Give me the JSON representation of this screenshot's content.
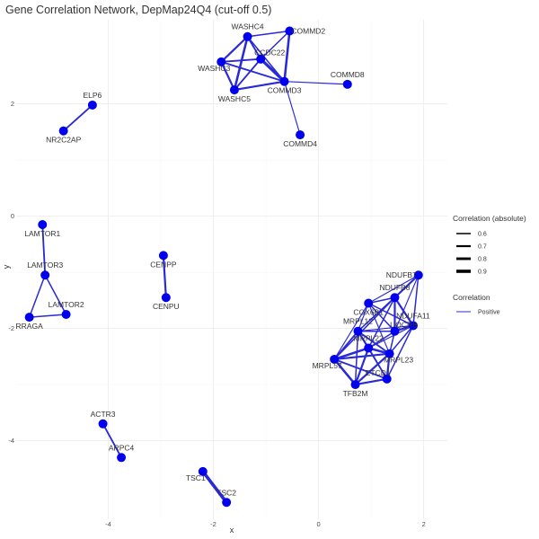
{
  "chart_data": {
    "type": "network",
    "title": "Gene Correlation Network, DepMap24Q4 (cut-off 0.5)",
    "xlabel": "x",
    "ylabel": "y",
    "xlim": [
      -5.75,
      2.45
    ],
    "ylim": [
      -5.4,
      3.5
    ],
    "x_ticks": [
      -4,
      -2,
      0,
      2
    ],
    "y_ticks": [
      -4,
      -2,
      0,
      2
    ],
    "grid": true,
    "legend_position": "right",
    "node_color": "#0000ee",
    "edge_color": "#2a2ad6",
    "legend": {
      "width_title": "Correlation (absolute)",
      "width_entries": [
        {
          "label": "0.6",
          "value": 0.6
        },
        {
          "label": "0.7",
          "value": 0.7
        },
        {
          "label": "0.8",
          "value": 0.8
        },
        {
          "label": "0.9",
          "value": 0.9
        }
      ],
      "color_title": "Correlation",
      "color_entries": [
        {
          "label": "Positive",
          "color": "#2a2ad6"
        }
      ]
    },
    "nodes": [
      {
        "id": "WASHC4",
        "x": -1.35,
        "y": 3.2
      },
      {
        "id": "COMMD2",
        "x": -0.55,
        "y": 3.3
      },
      {
        "id": "CCDC22",
        "x": -1.1,
        "y": 2.8
      },
      {
        "id": "WASHC3",
        "x": -1.85,
        "y": 2.75
      },
      {
        "id": "COMMD3",
        "x": -0.65,
        "y": 2.4
      },
      {
        "id": "WASHC5",
        "x": -1.6,
        "y": 2.25
      },
      {
        "id": "COMMD8",
        "x": 0.55,
        "y": 2.35
      },
      {
        "id": "COMMD4",
        "x": -0.35,
        "y": 1.45
      },
      {
        "id": "ELP6",
        "x": -4.3,
        "y": 1.98
      },
      {
        "id": "NR2C2AP",
        "x": -4.85,
        "y": 1.52
      },
      {
        "id": "LAMTOR1",
        "x": -5.25,
        "y": -0.15
      },
      {
        "id": "LAMTOR3",
        "x": -5.2,
        "y": -1.05
      },
      {
        "id": "LAMTOR2",
        "x": -4.8,
        "y": -1.75
      },
      {
        "id": "RRAGA",
        "x": -5.5,
        "y": -1.8
      },
      {
        "id": "CENPP",
        "x": -2.95,
        "y": -0.7
      },
      {
        "id": "CENPU",
        "x": -2.9,
        "y": -1.45
      },
      {
        "id": "NDUFB7",
        "x": 1.9,
        "y": -1.05
      },
      {
        "id": "NDUFB8",
        "x": 1.45,
        "y": -1.45
      },
      {
        "id": "COX6B1",
        "x": 0.95,
        "y": -1.55
      },
      {
        "id": "NDUFA11",
        "x": 1.8,
        "y": -1.95
      },
      {
        "id": "MRPL12",
        "x": 0.75,
        "y": -2.05
      },
      {
        "id": "UQCRB",
        "x": 1.45,
        "y": -2.05
      },
      {
        "id": "MRPL22",
        "x": 0.95,
        "y": -2.35
      },
      {
        "id": "MRPL23",
        "x": 1.35,
        "y": -2.45
      },
      {
        "id": "MRPL57",
        "x": 0.3,
        "y": -2.55
      },
      {
        "id": "ETCD1",
        "x": 1.3,
        "y": -2.9
      },
      {
        "id": "TFB2M",
        "x": 0.7,
        "y": -3.0
      },
      {
        "id": "ACTR3",
        "x": -4.1,
        "y": -3.7
      },
      {
        "id": "ARPC4",
        "x": -3.75,
        "y": -4.3
      },
      {
        "id": "TSC1",
        "x": -2.2,
        "y": -4.55
      },
      {
        "id": "TSC2",
        "x": -1.75,
        "y": -5.1
      }
    ],
    "edges": [
      {
        "source": "WASHC4",
        "target": "COMMD2",
        "correlation": 0.6
      },
      {
        "source": "WASHC4",
        "target": "CCDC22",
        "correlation": 0.65
      },
      {
        "source": "WASHC4",
        "target": "WASHC3",
        "correlation": 0.7
      },
      {
        "source": "WASHC4",
        "target": "COMMD3",
        "correlation": 0.6
      },
      {
        "source": "WASHC4",
        "target": "WASHC5",
        "correlation": 0.75
      },
      {
        "source": "COMMD2",
        "target": "CCDC22",
        "correlation": 0.6
      },
      {
        "source": "COMMD2",
        "target": "COMMD3",
        "correlation": 0.75
      },
      {
        "source": "CCDC22",
        "target": "WASHC3",
        "correlation": 0.65
      },
      {
        "source": "CCDC22",
        "target": "COMMD3",
        "correlation": 0.85
      },
      {
        "source": "CCDC22",
        "target": "WASHC5",
        "correlation": 0.65
      },
      {
        "source": "WASHC3",
        "target": "COMMD3",
        "correlation": 0.65
      },
      {
        "source": "WASHC3",
        "target": "WASHC5",
        "correlation": 0.7
      },
      {
        "source": "WASHC5",
        "target": "COMMD3",
        "correlation": 0.7
      },
      {
        "source": "COMMD3",
        "target": "COMMD8",
        "correlation": 0.55
      },
      {
        "source": "COMMD3",
        "target": "COMMD4",
        "correlation": 0.55
      },
      {
        "source": "ELP6",
        "target": "NR2C2AP",
        "correlation": 0.65
      },
      {
        "source": "LAMTOR1",
        "target": "LAMTOR3",
        "correlation": 0.65
      },
      {
        "source": "LAMTOR3",
        "target": "LAMTOR2",
        "correlation": 0.6
      },
      {
        "source": "LAMTOR3",
        "target": "RRAGA",
        "correlation": 0.6
      },
      {
        "source": "LAMTOR2",
        "target": "RRAGA",
        "correlation": 0.6
      },
      {
        "source": "CENPP",
        "target": "CENPU",
        "correlation": 0.7
      },
      {
        "source": "NDUFB7",
        "target": "NDUFB8",
        "correlation": 0.7
      },
      {
        "source": "NDUFB7",
        "target": "NDUFA11",
        "correlation": 0.6
      },
      {
        "source": "NDUFB7",
        "target": "COX6B1",
        "correlation": 0.55
      },
      {
        "source": "NDUFB7",
        "target": "UQCRB",
        "correlation": 0.55
      },
      {
        "source": "NDUFB7",
        "target": "MRPL12",
        "correlation": 0.55
      },
      {
        "source": "NDUFB8",
        "target": "NDUFA11",
        "correlation": 0.7
      },
      {
        "source": "NDUFB8",
        "target": "COX6B1",
        "correlation": 0.6
      },
      {
        "source": "NDUFB8",
        "target": "UQCRB",
        "correlation": 0.7
      },
      {
        "source": "NDUFB8",
        "target": "MRPL12",
        "correlation": 0.6
      },
      {
        "source": "NDUFB8",
        "target": "MRPL22",
        "correlation": 0.6
      },
      {
        "source": "NDUFB8",
        "target": "MRPL57",
        "correlation": 0.6
      },
      {
        "source": "COX6B1",
        "target": "UQCRB",
        "correlation": 0.6
      },
      {
        "source": "COX6B1",
        "target": "MRPL12",
        "correlation": 0.55
      },
      {
        "source": "COX6B1",
        "target": "NDUFA11",
        "correlation": 0.6
      },
      {
        "source": "COX6B1",
        "target": "MRPL57",
        "correlation": 0.55
      },
      {
        "source": "COX6B1",
        "target": "MRPL23",
        "correlation": 0.55
      },
      {
        "source": "NDUFA11",
        "target": "UQCRB",
        "correlation": 0.7
      },
      {
        "source": "NDUFA11",
        "target": "MRPL23",
        "correlation": 0.6
      },
      {
        "source": "NDUFA11",
        "target": "ETCD1",
        "correlation": 0.6
      },
      {
        "source": "NDUFA11",
        "target": "MRPL22",
        "correlation": 0.55
      },
      {
        "source": "NDUFA11",
        "target": "MRPL12",
        "correlation": 0.55
      },
      {
        "source": "UQCRB",
        "target": "MRPL12",
        "correlation": 0.6
      },
      {
        "source": "UQCRB",
        "target": "MRPL22",
        "correlation": 0.6
      },
      {
        "source": "UQCRB",
        "target": "MRPL23",
        "correlation": 0.6
      },
      {
        "source": "MRPL12",
        "target": "MRPL22",
        "correlation": 0.7
      },
      {
        "source": "MRPL12",
        "target": "MRPL57",
        "correlation": 0.65
      },
      {
        "source": "MRPL12",
        "target": "MRPL23",
        "correlation": 0.65
      },
      {
        "source": "MRPL12",
        "target": "TFB2M",
        "correlation": 0.6
      },
      {
        "source": "MRPL12",
        "target": "ETCD1",
        "correlation": 0.6
      },
      {
        "source": "MRPL22",
        "target": "MRPL57",
        "correlation": 0.75
      },
      {
        "source": "MRPL22",
        "target": "MRPL23",
        "correlation": 0.75
      },
      {
        "source": "MRPL22",
        "target": "TFB2M",
        "correlation": 0.7
      },
      {
        "source": "MRPL22",
        "target": "ETCD1",
        "correlation": 0.65
      },
      {
        "source": "MRPL23",
        "target": "MRPL57",
        "correlation": 0.7
      },
      {
        "source": "MRPL23",
        "target": "TFB2M",
        "correlation": 0.7
      },
      {
        "source": "MRPL23",
        "target": "ETCD1",
        "correlation": 0.7
      },
      {
        "source": "MRPL57",
        "target": "TFB2M",
        "correlation": 0.75
      },
      {
        "source": "MRPL57",
        "target": "ETCD1",
        "correlation": 0.65
      },
      {
        "source": "TFB2M",
        "target": "ETCD1",
        "correlation": 0.7
      },
      {
        "source": "ACTR3",
        "target": "ARPC4",
        "correlation": 0.65
      },
      {
        "source": "TSC1",
        "target": "TSC2",
        "correlation": 0.9
      }
    ],
    "label_placement": {
      "WASHC4": "above",
      "COMMD2": "right-level",
      "CCDC22": "above-right",
      "WASHC3": "below-left",
      "COMMD3": "below",
      "WASHC5": "below",
      "COMMD8": "above",
      "COMMD4": "below",
      "ELP6": "above",
      "NR2C2AP": "below",
      "LAMTOR1": "below",
      "LAMTOR3": "above",
      "LAMTOR2": "above",
      "RRAGA": "below",
      "CENPP": "below",
      "CENPU": "below",
      "NDUFB7": "left",
      "NDUFB8": "above",
      "COX6B1": "below",
      "NDUFA11": "above",
      "MRPL12": "above",
      "UQCRB": "above-right",
      "MRPL22": "above",
      "MRPL23": "below-right",
      "MRPL57": "below-left",
      "ETCD1": "above-left",
      "TFB2M": "below",
      "ACTR3": "above",
      "ARPC4": "above",
      "TSC1": "below-left",
      "TSC2": "above"
    }
  }
}
